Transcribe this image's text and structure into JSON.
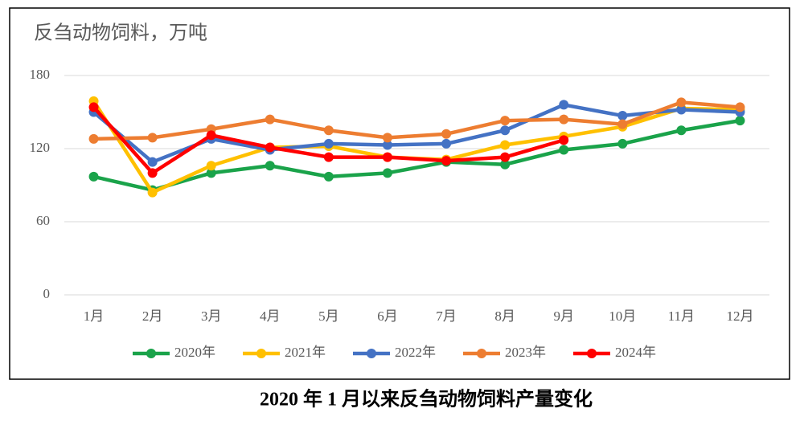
{
  "chart_data": {
    "type": "line",
    "title": "反刍动物饲料，万吨",
    "caption": "2020 年 1 月以来反刍动物饲料产量变化",
    "categories": [
      "1月",
      "2月",
      "3月",
      "4月",
      "5月",
      "6月",
      "7月",
      "8月",
      "9月",
      "10月",
      "11月",
      "12月"
    ],
    "series": [
      {
        "name": "2020年",
        "color": "#1aa34a",
        "values": [
          97,
          86,
          100,
          106,
          97,
          100,
          109,
          107,
          119,
          124,
          135,
          143
        ]
      },
      {
        "name": "2021年",
        "color": "#ffc000",
        "values": [
          159,
          84,
          106,
          121,
          122,
          113,
          111,
          123,
          130,
          138,
          153,
          152
        ]
      },
      {
        "name": "2022年",
        "color": "#4472c4",
        "values": [
          150,
          109,
          128,
          119,
          124,
          123,
          124,
          135,
          156,
          147,
          152,
          150
        ]
      },
      {
        "name": "2023年",
        "color": "#ed7d31",
        "values": [
          128,
          129,
          136,
          144,
          135,
          129,
          132,
          143,
          144,
          140,
          158,
          154
        ]
      },
      {
        "name": "2024年",
        "color": "#ff0000",
        "values": [
          154,
          100,
          131,
          121,
          113,
          113,
          110,
          113,
          127,
          null,
          null,
          null
        ]
      }
    ],
    "ylim": [
      0,
      180
    ],
    "yticks": [
      0,
      60,
      120,
      180
    ],
    "grid": true,
    "legend": "bottom"
  }
}
